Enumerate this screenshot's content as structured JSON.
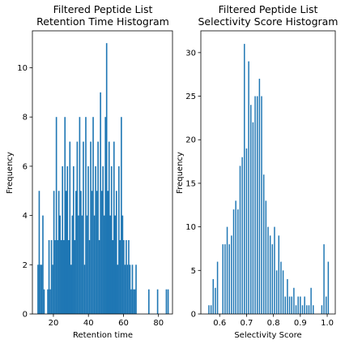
{
  "chart_data": [
    {
      "type": "bar",
      "title": [
        "Filtered Peptide List",
        "Retention Time Histogram"
      ],
      "xlabel": "Retention time",
      "ylabel": "Frequency",
      "xlim": [
        8,
        88
      ],
      "ylim": [
        0,
        11.5
      ],
      "xticks": [
        20,
        40,
        60,
        80
      ],
      "yticks": [
        0,
        2,
        4,
        6,
        8,
        10
      ],
      "color": "#1f77b4",
      "grid": false,
      "bin_width": 0.75,
      "bars": [
        [
          11.2,
          2
        ],
        [
          11.9,
          5
        ],
        [
          12.6,
          2
        ],
        [
          13.3,
          2
        ],
        [
          14.0,
          4
        ],
        [
          14.7,
          1
        ],
        [
          15.4,
          0
        ],
        [
          16.1,
          0
        ],
        [
          16.8,
          1
        ],
        [
          17.5,
          3
        ],
        [
          18.2,
          1
        ],
        [
          18.9,
          3
        ],
        [
          19.6,
          2
        ],
        [
          20.3,
          5
        ],
        [
          21.0,
          3
        ],
        [
          21.7,
          8
        ],
        [
          22.4,
          3
        ],
        [
          23.1,
          5
        ],
        [
          23.8,
          4
        ],
        [
          24.5,
          3
        ],
        [
          25.2,
          6
        ],
        [
          25.9,
          3
        ],
        [
          26.6,
          8
        ],
        [
          27.3,
          5
        ],
        [
          28.0,
          6
        ],
        [
          28.7,
          3
        ],
        [
          29.4,
          7
        ],
        [
          30.1,
          2
        ],
        [
          30.8,
          4
        ],
        [
          31.5,
          6
        ],
        [
          32.2,
          3
        ],
        [
          32.9,
          5
        ],
        [
          33.6,
          7
        ],
        [
          34.3,
          4
        ],
        [
          35.0,
          8
        ],
        [
          35.7,
          5
        ],
        [
          36.4,
          4
        ],
        [
          37.1,
          7
        ],
        [
          37.8,
          2
        ],
        [
          38.5,
          8
        ],
        [
          39.2,
          4
        ],
        [
          39.9,
          6
        ],
        [
          40.6,
          3
        ],
        [
          41.3,
          7
        ],
        [
          42.0,
          5
        ],
        [
          42.7,
          8
        ],
        [
          43.4,
          4
        ],
        [
          44.1,
          6
        ],
        [
          44.8,
          5
        ],
        [
          45.5,
          7
        ],
        [
          46.2,
          3
        ],
        [
          46.9,
          9
        ],
        [
          47.6,
          5
        ],
        [
          48.3,
          6
        ],
        [
          49.0,
          4
        ],
        [
          49.7,
          8
        ],
        [
          50.4,
          11
        ],
        [
          51.1,
          5
        ],
        [
          51.8,
          7
        ],
        [
          52.5,
          4
        ],
        [
          53.2,
          6
        ],
        [
          53.9,
          3
        ],
        [
          54.6,
          7
        ],
        [
          55.3,
          4
        ],
        [
          56.0,
          5
        ],
        [
          56.7,
          2
        ],
        [
          57.4,
          6
        ],
        [
          58.1,
          3
        ],
        [
          58.8,
          8
        ],
        [
          59.5,
          4
        ],
        [
          60.2,
          3
        ],
        [
          60.9,
          2
        ],
        [
          61.6,
          3
        ],
        [
          62.3,
          2
        ],
        [
          63.0,
          3
        ],
        [
          63.7,
          2
        ],
        [
          64.4,
          1
        ],
        [
          65.1,
          2
        ],
        [
          65.8,
          1
        ],
        [
          66.5,
          1
        ],
        [
          67.2,
          2
        ],
        [
          74.5,
          1
        ],
        [
          79.5,
          1
        ],
        [
          84.5,
          1
        ],
        [
          85.5,
          1
        ]
      ]
    },
    {
      "type": "bar",
      "title": [
        "Filtered Peptide List",
        "Selectivity Score Histogram"
      ],
      "xlabel": "Selectivity Score",
      "ylabel": "Frequency",
      "xlim": [
        0.53,
        1.03
      ],
      "ylim": [
        0,
        32.5
      ],
      "xticks": [
        0.6,
        0.7,
        0.8,
        0.9,
        1.0
      ],
      "xtick_labels": [
        "0.6",
        "0.7",
        "0.8",
        "0.9",
        "1.0"
      ],
      "yticks": [
        0,
        5,
        10,
        15,
        20,
        25,
        30
      ],
      "color": "#1f77b4",
      "grid": false,
      "bin_width": 0.0045,
      "bars": [
        [
          0.56,
          1
        ],
        [
          0.568,
          1
        ],
        [
          0.576,
          4
        ],
        [
          0.584,
          3
        ],
        [
          0.592,
          6
        ],
        [
          0.604,
          0
        ],
        [
          0.612,
          8
        ],
        [
          0.62,
          8
        ],
        [
          0.628,
          10
        ],
        [
          0.636,
          8
        ],
        [
          0.644,
          9
        ],
        [
          0.652,
          12
        ],
        [
          0.66,
          13
        ],
        [
          0.668,
          12
        ],
        [
          0.676,
          17
        ],
        [
          0.684,
          18
        ],
        [
          0.692,
          31
        ],
        [
          0.7,
          19
        ],
        [
          0.708,
          29
        ],
        [
          0.716,
          24
        ],
        [
          0.724,
          22
        ],
        [
          0.732,
          25
        ],
        [
          0.74,
          25
        ],
        [
          0.748,
          27
        ],
        [
          0.756,
          25
        ],
        [
          0.764,
          16
        ],
        [
          0.772,
          13
        ],
        [
          0.78,
          10
        ],
        [
          0.788,
          9
        ],
        [
          0.796,
          8
        ],
        [
          0.804,
          10
        ],
        [
          0.812,
          5
        ],
        [
          0.82,
          9
        ],
        [
          0.828,
          6
        ],
        [
          0.836,
          5
        ],
        [
          0.844,
          2
        ],
        [
          0.852,
          4
        ],
        [
          0.86,
          2
        ],
        [
          0.868,
          2
        ],
        [
          0.876,
          3
        ],
        [
          0.884,
          1
        ],
        [
          0.892,
          2
        ],
        [
          0.9,
          2
        ],
        [
          0.908,
          1
        ],
        [
          0.916,
          2
        ],
        [
          0.924,
          1
        ],
        [
          0.932,
          1
        ],
        [
          0.94,
          3
        ],
        [
          0.948,
          1
        ],
        [
          0.98,
          1
        ],
        [
          0.988,
          8
        ],
        [
          0.996,
          2
        ],
        [
          1.004,
          6
        ]
      ]
    }
  ]
}
